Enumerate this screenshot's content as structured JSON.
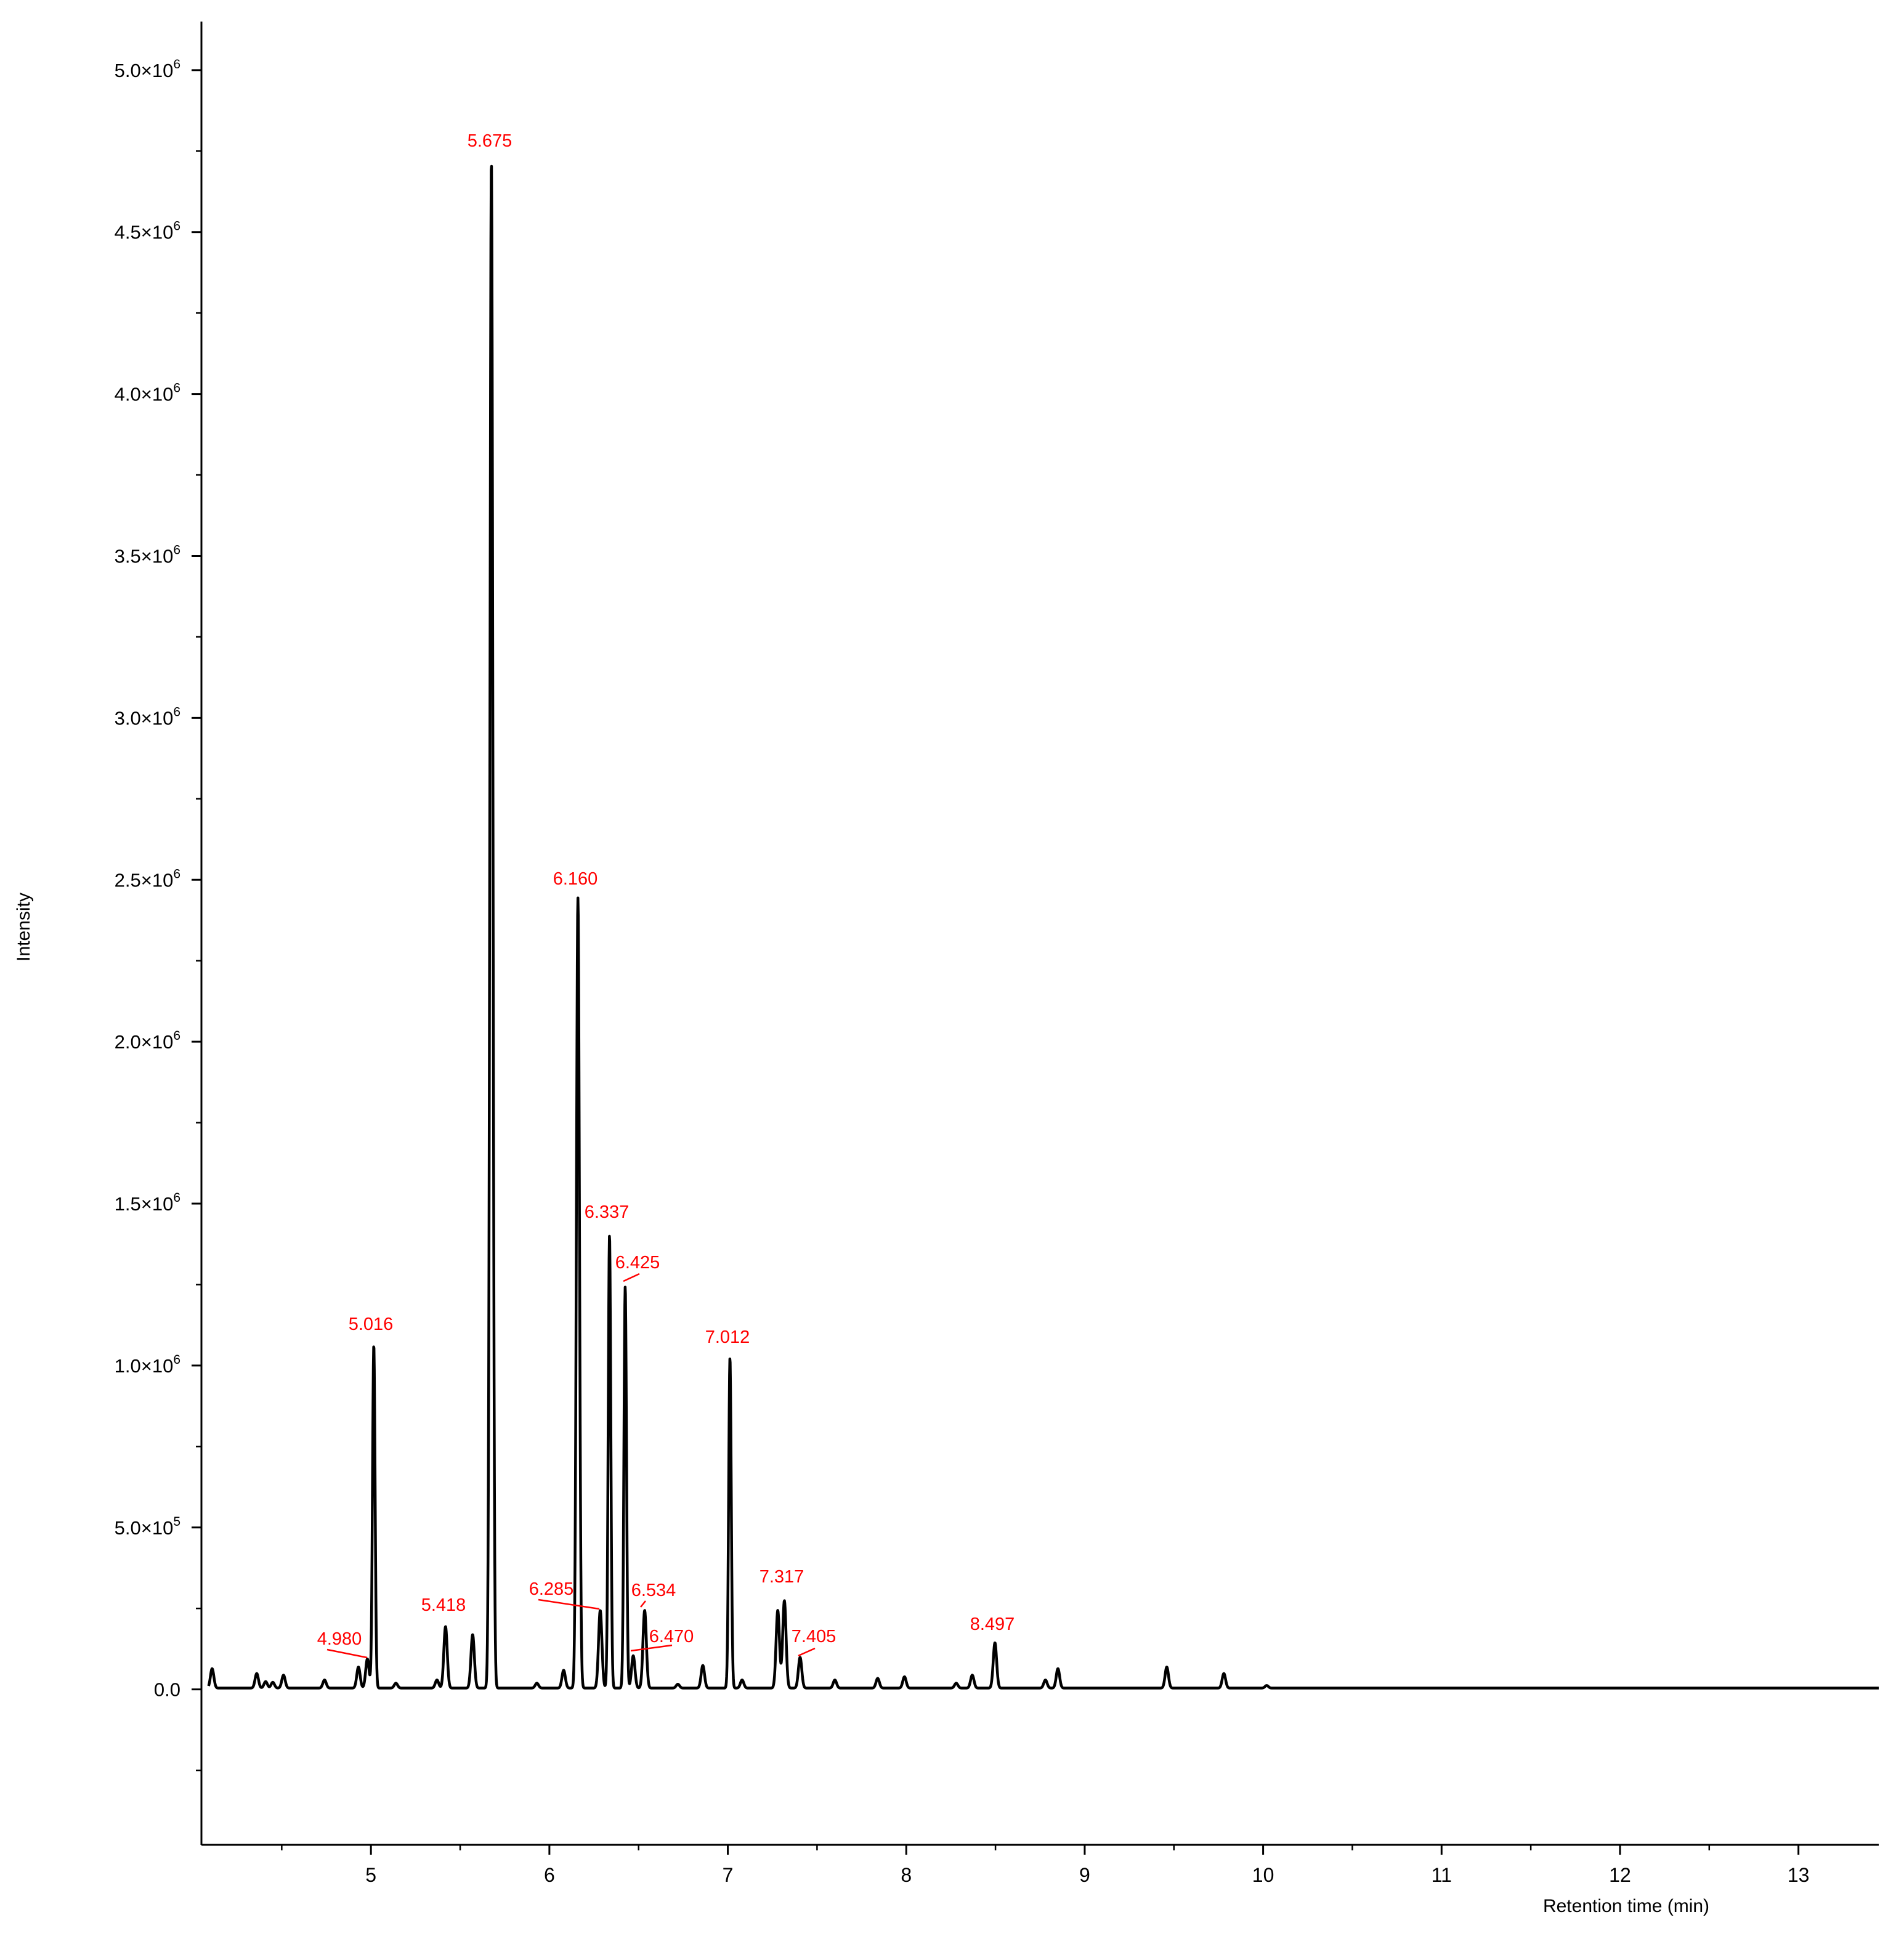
{
  "chart_data": {
    "type": "line",
    "title": "",
    "xlabel": "Retention time (min)",
    "ylabel": "Intensity",
    "xlim": [
      4.05,
      13.45
    ],
    "ylim": [
      -480000,
      5150000
    ],
    "x_ticks": [
      {
        "value": 5,
        "label": "5"
      },
      {
        "value": 6,
        "label": "6"
      },
      {
        "value": 7,
        "label": "7"
      },
      {
        "value": 8,
        "label": "8"
      },
      {
        "value": 9,
        "label": "9"
      },
      {
        "value": 10,
        "label": "10"
      },
      {
        "value": 11,
        "label": "11"
      },
      {
        "value": 12,
        "label": "12"
      },
      {
        "value": 13,
        "label": "13"
      }
    ],
    "y_ticks": [
      {
        "value": 0,
        "mantissa": "0.0",
        "exp": ""
      },
      {
        "value": 500000,
        "mantissa": "5.0×10",
        "exp": "5"
      },
      {
        "value": 1000000,
        "mantissa": "1.0×10",
        "exp": "6"
      },
      {
        "value": 1500000,
        "mantissa": "1.5×10",
        "exp": "6"
      },
      {
        "value": 2000000,
        "mantissa": "2.0×10",
        "exp": "6"
      },
      {
        "value": 2500000,
        "mantissa": "2.5×10",
        "exp": "6"
      },
      {
        "value": 3000000,
        "mantissa": "3.0×10",
        "exp": "6"
      },
      {
        "value": 3500000,
        "mantissa": "3.5×10",
        "exp": "6"
      },
      {
        "value": 4000000,
        "mantissa": "4.0×10",
        "exp": "6"
      },
      {
        "value": 4500000,
        "mantissa": "4.5×10",
        "exp": "6"
      },
      {
        "value": 5000000,
        "mantissa": "5.0×10",
        "exp": "6"
      }
    ],
    "grid": false,
    "series_color": "#000000",
    "label_color": "#ff0000",
    "peaks": [
      {
        "x": 4.11,
        "y": 60000
      },
      {
        "x": 4.36,
        "y": 45000
      },
      {
        "x": 4.41,
        "y": 20000
      },
      {
        "x": 4.45,
        "y": 18000
      },
      {
        "x": 4.51,
        "y": 40000
      },
      {
        "x": 4.74,
        "y": 25000
      },
      {
        "x": 4.93,
        "y": 65000
      },
      {
        "x": 4.98,
        "y": 90000
      },
      {
        "x": 5.016,
        "y": 1060000
      },
      {
        "x": 5.14,
        "y": 15000
      },
      {
        "x": 5.37,
        "y": 25000
      },
      {
        "x": 5.418,
        "y": 190000
      },
      {
        "x": 5.57,
        "y": 165000
      },
      {
        "x": 5.675,
        "y": 4720000
      },
      {
        "x": 5.93,
        "y": 15000
      },
      {
        "x": 6.08,
        "y": 55000
      },
      {
        "x": 6.16,
        "y": 2440000
      },
      {
        "x": 6.285,
        "y": 240000
      },
      {
        "x": 6.337,
        "y": 1400000
      },
      {
        "x": 6.425,
        "y": 1240000
      },
      {
        "x": 6.47,
        "y": 100000
      },
      {
        "x": 6.534,
        "y": 240000
      },
      {
        "x": 6.72,
        "y": 12000
      },
      {
        "x": 6.86,
        "y": 70000
      },
      {
        "x": 7.012,
        "y": 1020000
      },
      {
        "x": 7.08,
        "y": 25000
      },
      {
        "x": 7.28,
        "y": 240000
      },
      {
        "x": 7.317,
        "y": 270000
      },
      {
        "x": 7.405,
        "y": 95000
      },
      {
        "x": 7.6,
        "y": 25000
      },
      {
        "x": 7.84,
        "y": 30000
      },
      {
        "x": 7.99,
        "y": 35000
      },
      {
        "x": 8.28,
        "y": 15000
      },
      {
        "x": 8.37,
        "y": 40000
      },
      {
        "x": 8.497,
        "y": 140000
      },
      {
        "x": 8.78,
        "y": 25000
      },
      {
        "x": 8.85,
        "y": 60000
      },
      {
        "x": 9.46,
        "y": 65000
      },
      {
        "x": 9.78,
        "y": 45000
      },
      {
        "x": 10.02,
        "y": 8000
      }
    ],
    "annotations": [
      {
        "text": "5.675",
        "x": 5.675
      },
      {
        "text": "6.160",
        "x": 6.16
      },
      {
        "text": "6.337",
        "x": 6.337
      },
      {
        "text": "6.425",
        "x": 6.425
      },
      {
        "text": "5.016",
        "x": 5.016
      },
      {
        "text": "7.012",
        "x": 7.012
      },
      {
        "text": "5.418",
        "x": 5.418
      },
      {
        "text": "4.980",
        "x": 4.98
      },
      {
        "text": "6.285",
        "x": 6.285
      },
      {
        "text": "6.534",
        "x": 6.534
      },
      {
        "text": "6.470",
        "x": 6.47
      },
      {
        "text": "7.317",
        "x": 7.317
      },
      {
        "text": "7.405",
        "x": 7.405
      },
      {
        "text": "8.497",
        "x": 8.497
      }
    ]
  }
}
